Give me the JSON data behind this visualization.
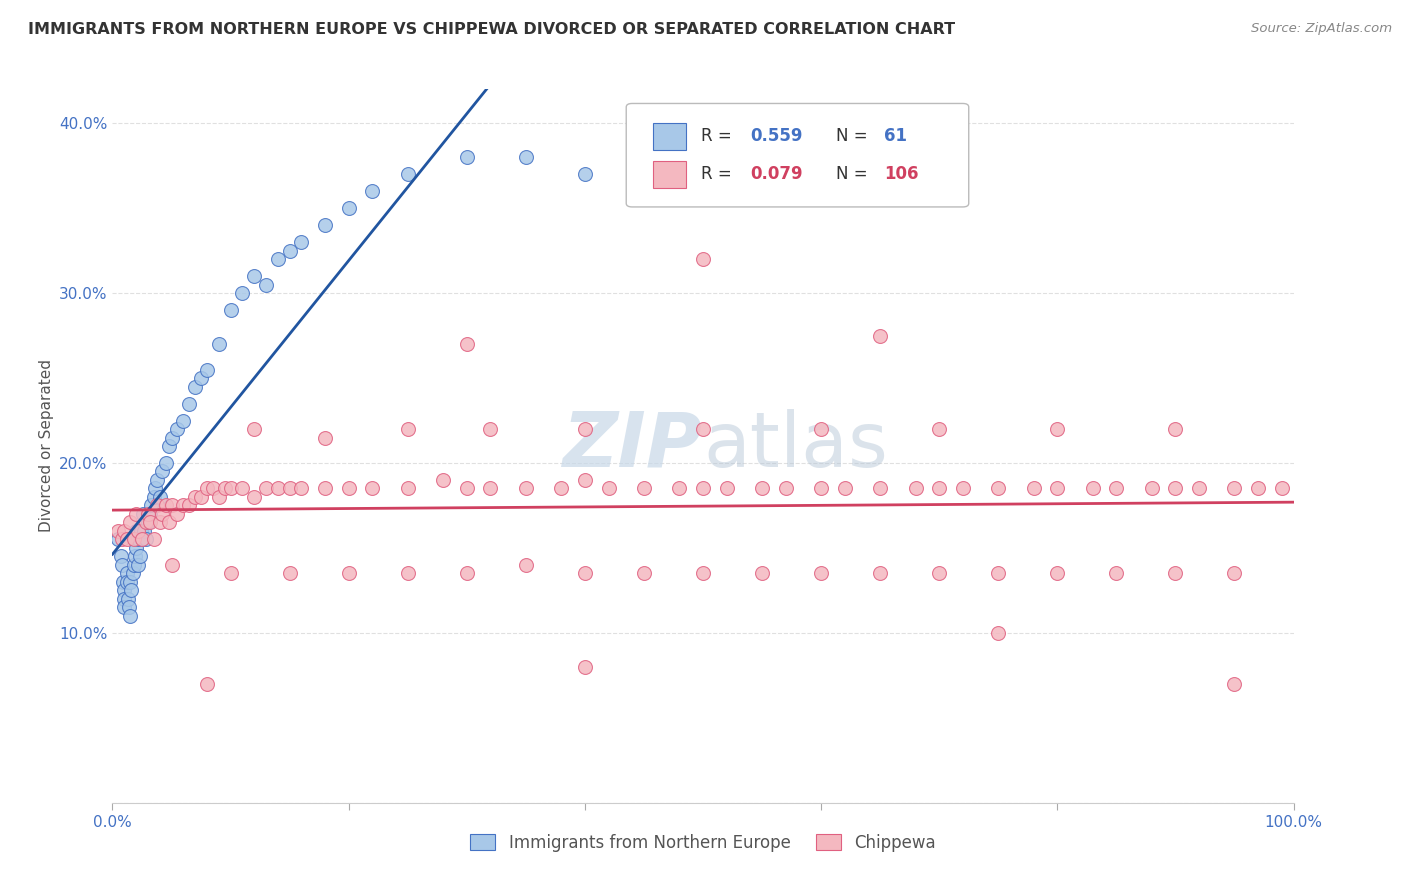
{
  "title": "IMMIGRANTS FROM NORTHERN EUROPE VS CHIPPEWA DIVORCED OR SEPARATED CORRELATION CHART",
  "source_text": "Source: ZipAtlas.com",
  "ylabel": "Divorced or Separated",
  "xlabel": "",
  "watermark": "ZIPAtlas",
  "xlim": [
    0.0,
    1.0
  ],
  "ylim": [
    0.0,
    0.42
  ],
  "x_ticks": [
    0.0,
    0.2,
    0.4,
    0.6,
    0.8,
    1.0
  ],
  "x_tick_labels": [
    "0.0%",
    "",
    "",
    "",
    "",
    "100.0%"
  ],
  "y_ticks": [
    0.0,
    0.1,
    0.2,
    0.3,
    0.4
  ],
  "y_tick_labels": [
    "",
    "10.0%",
    "20.0%",
    "30.0%",
    "40.0%"
  ],
  "blue_color": "#a8c8e8",
  "pink_color": "#f4b8c0",
  "blue_edge_color": "#4472c4",
  "pink_edge_color": "#e06080",
  "blue_line_color": "#2155a0",
  "pink_line_color": "#d04060",
  "grid_color": "#e0e0e0",
  "watermark_color": "#c8d8e8",
  "title_color": "#333333",
  "source_color": "#888888",
  "tick_color": "#4472c4",
  "background_color": "#ffffff",
  "blue_scatter_x": [
    0.005,
    0.007,
    0.008,
    0.009,
    0.01,
    0.01,
    0.01,
    0.012,
    0.012,
    0.013,
    0.014,
    0.015,
    0.015,
    0.016,
    0.017,
    0.018,
    0.018,
    0.019,
    0.02,
    0.02,
    0.02,
    0.022,
    0.022,
    0.023,
    0.024,
    0.025,
    0.026,
    0.027,
    0.028,
    0.03,
    0.032,
    0.033,
    0.035,
    0.036,
    0.038,
    0.04,
    0.042,
    0.045,
    0.048,
    0.05,
    0.055,
    0.06,
    0.065,
    0.07,
    0.075,
    0.08,
    0.09,
    0.1,
    0.11,
    0.12,
    0.13,
    0.14,
    0.15,
    0.16,
    0.18,
    0.2,
    0.22,
    0.25,
    0.3,
    0.35,
    0.4
  ],
  "blue_scatter_y": [
    0.155,
    0.145,
    0.14,
    0.13,
    0.125,
    0.12,
    0.115,
    0.135,
    0.13,
    0.12,
    0.115,
    0.11,
    0.13,
    0.125,
    0.135,
    0.14,
    0.155,
    0.145,
    0.155,
    0.15,
    0.16,
    0.155,
    0.14,
    0.145,
    0.16,
    0.155,
    0.17,
    0.16,
    0.155,
    0.165,
    0.17,
    0.175,
    0.18,
    0.185,
    0.19,
    0.18,
    0.195,
    0.2,
    0.21,
    0.215,
    0.22,
    0.225,
    0.235,
    0.245,
    0.25,
    0.255,
    0.27,
    0.29,
    0.3,
    0.31,
    0.305,
    0.32,
    0.325,
    0.33,
    0.34,
    0.35,
    0.36,
    0.37,
    0.38,
    0.38,
    0.37
  ],
  "pink_scatter_x": [
    0.005,
    0.008,
    0.01,
    0.012,
    0.015,
    0.018,
    0.02,
    0.022,
    0.025,
    0.028,
    0.03,
    0.032,
    0.035,
    0.038,
    0.04,
    0.042,
    0.045,
    0.048,
    0.05,
    0.055,
    0.06,
    0.065,
    0.07,
    0.075,
    0.08,
    0.085,
    0.09,
    0.095,
    0.1,
    0.11,
    0.12,
    0.13,
    0.14,
    0.15,
    0.16,
    0.18,
    0.2,
    0.22,
    0.25,
    0.28,
    0.3,
    0.32,
    0.35,
    0.38,
    0.4,
    0.42,
    0.45,
    0.48,
    0.5,
    0.52,
    0.55,
    0.57,
    0.6,
    0.62,
    0.65,
    0.68,
    0.7,
    0.72,
    0.75,
    0.78,
    0.8,
    0.83,
    0.85,
    0.88,
    0.9,
    0.92,
    0.95,
    0.97,
    0.99,
    0.05,
    0.1,
    0.15,
    0.2,
    0.25,
    0.3,
    0.35,
    0.4,
    0.45,
    0.5,
    0.55,
    0.6,
    0.65,
    0.7,
    0.75,
    0.8,
    0.85,
    0.9,
    0.95,
    0.12,
    0.18,
    0.25,
    0.32,
    0.4,
    0.5,
    0.6,
    0.7,
    0.8,
    0.9,
    0.08,
    0.4,
    0.75,
    0.95,
    0.3,
    0.65,
    0.5
  ],
  "pink_scatter_y": [
    0.16,
    0.155,
    0.16,
    0.155,
    0.165,
    0.155,
    0.17,
    0.16,
    0.155,
    0.165,
    0.17,
    0.165,
    0.155,
    0.175,
    0.165,
    0.17,
    0.175,
    0.165,
    0.175,
    0.17,
    0.175,
    0.175,
    0.18,
    0.18,
    0.185,
    0.185,
    0.18,
    0.185,
    0.185,
    0.185,
    0.18,
    0.185,
    0.185,
    0.185,
    0.185,
    0.185,
    0.185,
    0.185,
    0.185,
    0.19,
    0.185,
    0.185,
    0.185,
    0.185,
    0.19,
    0.185,
    0.185,
    0.185,
    0.185,
    0.185,
    0.185,
    0.185,
    0.185,
    0.185,
    0.185,
    0.185,
    0.185,
    0.185,
    0.185,
    0.185,
    0.185,
    0.185,
    0.185,
    0.185,
    0.185,
    0.185,
    0.185,
    0.185,
    0.185,
    0.14,
    0.135,
    0.135,
    0.135,
    0.135,
    0.135,
    0.14,
    0.135,
    0.135,
    0.135,
    0.135,
    0.135,
    0.135,
    0.135,
    0.135,
    0.135,
    0.135,
    0.135,
    0.135,
    0.22,
    0.215,
    0.22,
    0.22,
    0.22,
    0.22,
    0.22,
    0.22,
    0.22,
    0.22,
    0.07,
    0.08,
    0.1,
    0.07,
    0.27,
    0.275,
    0.32
  ]
}
